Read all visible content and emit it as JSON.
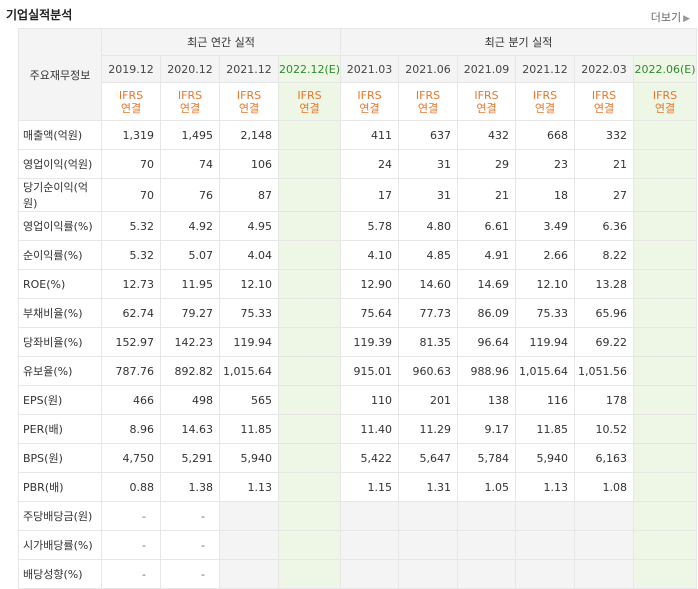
{
  "header": {
    "title": "기업실적분석",
    "more_label": "더보기"
  },
  "table": {
    "corner_label": "주요재무정보",
    "annual_group": "최근 연간 실적",
    "quarter_group": "최근 분기 실적",
    "annual_periods": [
      "2019.12",
      "2020.12",
      "2021.12",
      "2022.12(E)"
    ],
    "quarter_periods": [
      "2021.03",
      "2021.06",
      "2021.09",
      "2021.12",
      "2022.03",
      "2022.06(E)"
    ],
    "standard_top": "IFRS",
    "standard_bottom": "연결",
    "rows": [
      {
        "label": "매출액(억원)",
        "values": [
          "1,319",
          "1,495",
          "2,148",
          "",
          "411",
          "637",
          "432",
          "668",
          "332",
          ""
        ]
      },
      {
        "label": "영업이익(억원)",
        "values": [
          "70",
          "74",
          "106",
          "",
          "24",
          "31",
          "29",
          "23",
          "21",
          ""
        ]
      },
      {
        "label": "당기순이익(억원)",
        "values": [
          "70",
          "76",
          "87",
          "",
          "17",
          "31",
          "21",
          "18",
          "27",
          ""
        ]
      },
      {
        "label": "영업이익률(%)",
        "values": [
          "5.32",
          "4.92",
          "4.95",
          "",
          "5.78",
          "4.80",
          "6.61",
          "3.49",
          "6.36",
          ""
        ]
      },
      {
        "label": "순이익률(%)",
        "values": [
          "5.32",
          "5.07",
          "4.04",
          "",
          "4.10",
          "4.85",
          "4.91",
          "2.66",
          "8.22",
          ""
        ]
      },
      {
        "label": "ROE(%)",
        "values": [
          "12.73",
          "11.95",
          "12.10",
          "",
          "12.90",
          "14.60",
          "14.69",
          "12.10",
          "13.28",
          ""
        ]
      },
      {
        "label": "부채비율(%)",
        "values": [
          "62.74",
          "79.27",
          "75.33",
          "",
          "75.64",
          "77.73",
          "86.09",
          "75.33",
          "65.96",
          ""
        ]
      },
      {
        "label": "당좌비율(%)",
        "values": [
          "152.97",
          "142.23",
          "119.94",
          "",
          "119.39",
          "81.35",
          "96.64",
          "119.94",
          "69.22",
          ""
        ]
      },
      {
        "label": "유보율(%)",
        "values": [
          "787.76",
          "892.82",
          "1,015.64",
          "",
          "915.01",
          "960.63",
          "988.96",
          "1,015.64",
          "1,051.56",
          ""
        ]
      },
      {
        "label": "EPS(원)",
        "values": [
          "466",
          "498",
          "565",
          "",
          "110",
          "201",
          "138",
          "116",
          "178",
          ""
        ]
      },
      {
        "label": "PER(배)",
        "values": [
          "8.96",
          "14.63",
          "11.85",
          "",
          "11.40",
          "11.29",
          "9.17",
          "11.85",
          "10.52",
          ""
        ]
      },
      {
        "label": "BPS(원)",
        "values": [
          "4,750",
          "5,291",
          "5,940",
          "",
          "5,422",
          "5,647",
          "5,784",
          "5,940",
          "6,163",
          ""
        ]
      },
      {
        "label": "PBR(배)",
        "values": [
          "0.88",
          "1.38",
          "1.13",
          "",
          "1.15",
          "1.31",
          "1.05",
          "1.13",
          "1.08",
          ""
        ]
      },
      {
        "label": "주당배당금(원)",
        "values": [
          "-",
          "-",
          "",
          "",
          "",
          "",
          "",
          "",
          "",
          ""
        ]
      },
      {
        "label": "시가배당률(%)",
        "values": [
          "-",
          "-",
          "",
          "",
          "",
          "",
          "",
          "",
          "",
          ""
        ]
      },
      {
        "label": "배당성향(%)",
        "values": [
          "-",
          "-",
          "",
          "",
          "",
          "",
          "",
          "",
          "",
          ""
        ]
      }
    ]
  }
}
